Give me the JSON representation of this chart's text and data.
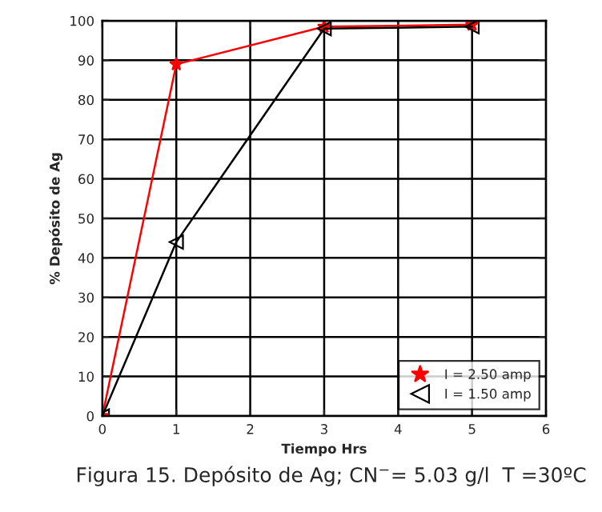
{
  "chart_data": {
    "type": "line",
    "xlabel": "Tiempo Hrs",
    "ylabel": "% Depósito de Ag",
    "x": [
      0,
      1,
      3,
      5
    ],
    "series": [
      {
        "name": "I = 2.50 amp",
        "color": "#ff0000",
        "marker": "star",
        "values": [
          0,
          89,
          98.5,
          99
        ]
      },
      {
        "name": "I = 1.50 amp",
        "color": "#000000",
        "marker": "triangle",
        "values": [
          0,
          44,
          98,
          98.5
        ]
      }
    ],
    "xlim": [
      0,
      6
    ],
    "xticks": [
      0,
      1,
      2,
      3,
      4,
      5,
      6
    ],
    "ylim": [
      0,
      100
    ],
    "yticks": [
      0,
      10,
      20,
      30,
      40,
      50,
      60,
      70,
      80,
      90,
      100
    ],
    "grid": true,
    "legend": "bottom right",
    "line_style": "solid",
    "annotations": [
      "Figura 15. Depósito de Ag; CN$^{−}$= 5.03 g/l  T =30ºC"
    ]
  }
}
